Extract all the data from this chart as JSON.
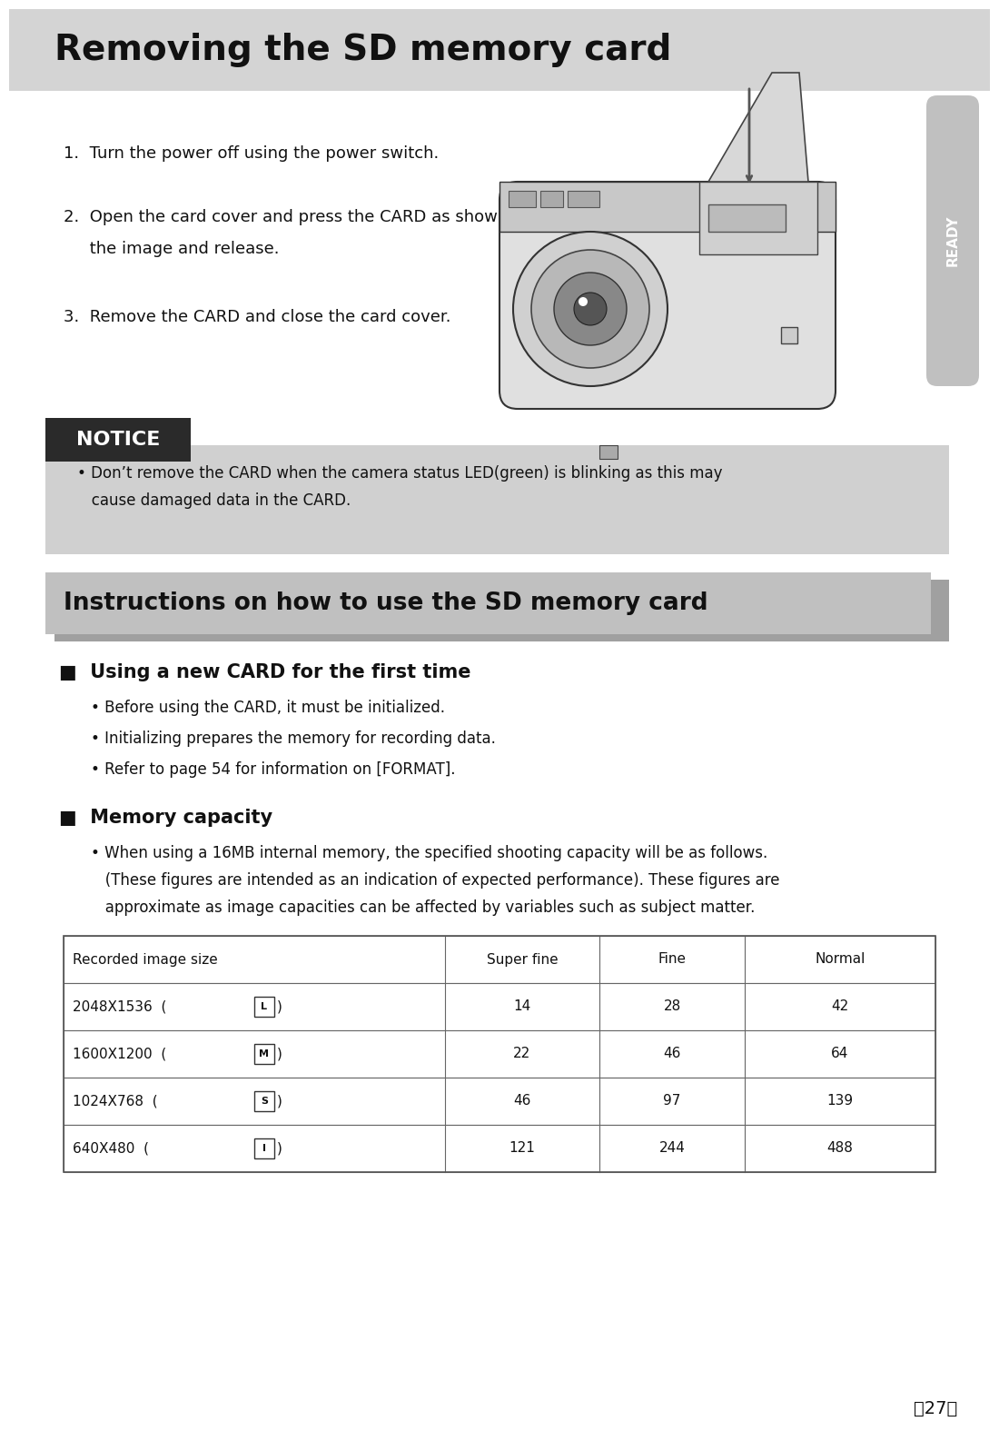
{
  "page_bg": "#ffffff",
  "title": "Removing the SD memory card",
  "title_bg": "#d4d4d4",
  "title_color": "#111111",
  "title_fontsize": 30,
  "step1": "1.  Turn the power off using the power switch.",
  "step2_line1": "2.  Open the card cover and press the CARD as shown in",
  "step2_line2": "     the image and release.",
  "step3": "3.  Remove the CARD and close the card cover.",
  "notice_label": "NOTICE",
  "notice_label_bg": "#2a2a2a",
  "notice_label_color": "#ffffff",
  "notice_box_bg": "#d0d0d0",
  "notice_text_line1": "• Don’t remove the CARD when the camera status LED(green) is blinking as this may",
  "notice_text_line2": "   cause damaged data in the CARD.",
  "section2_title": "Instructions on how to use the SD memory card",
  "section2_bg": "#c0c0c0",
  "section2_shadow": "#a0a0a0",
  "sub1_title": "■  Using a new CARD for the first time",
  "sub1_bullets": [
    "• Before using the CARD, it must be initialized.",
    "• Initializing prepares the memory for recording data.",
    "• Refer to page 54 for information on [FORMAT]."
  ],
  "sub2_title": "■  Memory capacity",
  "sub2_text_line1": "• When using a 16MB internal memory, the specified shooting capacity will be as follows.",
  "sub2_text_line2": "   (These figures are intended as an indication of expected performance). These figures are",
  "sub2_text_line3": "   approximate as image capacities can be affected by variables such as subject matter.",
  "table_headers": [
    "Recorded image size",
    "Super fine",
    "Fine",
    "Normal"
  ],
  "table_col1": [
    "2048X1536 (  L  )",
    "1600X1200 (  M  )",
    "1024X768   (  S  )",
    "640X480    (  I  )"
  ],
  "table_col2": [
    "14",
    "22",
    "46",
    "121"
  ],
  "table_col3": [
    "28",
    "46",
    "97",
    "244"
  ],
  "table_col4": [
    "42",
    "64",
    "139",
    "488"
  ],
  "ready_text": "READY",
  "ready_bg": "#c0c0c0",
  "page_number": "《27》"
}
